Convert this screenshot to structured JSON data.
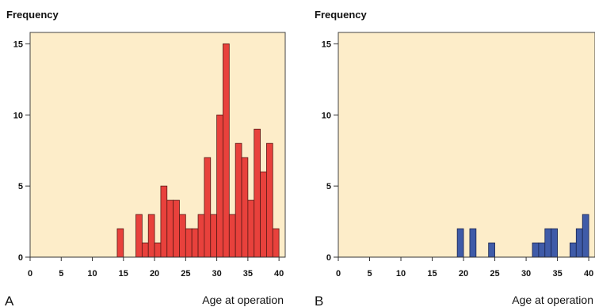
{
  "chart_data": [
    {
      "panel_label": "A",
      "type": "bar",
      "xlabel": "Age at operation",
      "ylabel": "Frequency",
      "xlim": [
        0,
        41
      ],
      "ylim": [
        0,
        15.8
      ],
      "xticks": [
        0,
        5,
        10,
        15,
        20,
        25,
        30,
        35,
        40
      ],
      "yticks": [
        0,
        5,
        10,
        15
      ],
      "colors": {
        "bar": "#e8413c",
        "bar_edge": "#5a1a16",
        "plot_bg": "#fdedc9"
      },
      "bin_width": 1,
      "x": [
        14,
        17,
        18,
        19,
        20,
        21,
        22,
        23,
        24,
        25,
        26,
        27,
        28,
        29,
        30,
        31,
        32,
        33,
        34,
        35,
        36,
        37,
        38,
        39
      ],
      "values": [
        2,
        3,
        1,
        3,
        1,
        5,
        4,
        4,
        3,
        2,
        2,
        3,
        7,
        3,
        10,
        15,
        3,
        8,
        7,
        4,
        9,
        6,
        8,
        2
      ]
    },
    {
      "panel_label": "B",
      "type": "bar",
      "xlabel": "Age at operation",
      "ylabel": "Frequency",
      "xlim": [
        0,
        41
      ],
      "ylim": [
        0,
        15.8
      ],
      "xticks": [
        0,
        5,
        10,
        15,
        20,
        25,
        30,
        35,
        40
      ],
      "yticks": [
        0,
        5,
        10,
        15
      ],
      "colors": {
        "bar": "#3f5ba8",
        "bar_edge": "#1a2550",
        "plot_bg": "#fdedc9"
      },
      "bin_width": 1,
      "x": [
        19,
        21,
        24,
        31,
        32,
        33,
        34,
        37,
        38,
        39
      ],
      "values": [
        2,
        2,
        1,
        1,
        1,
        2,
        2,
        1,
        2,
        3
      ]
    }
  ]
}
